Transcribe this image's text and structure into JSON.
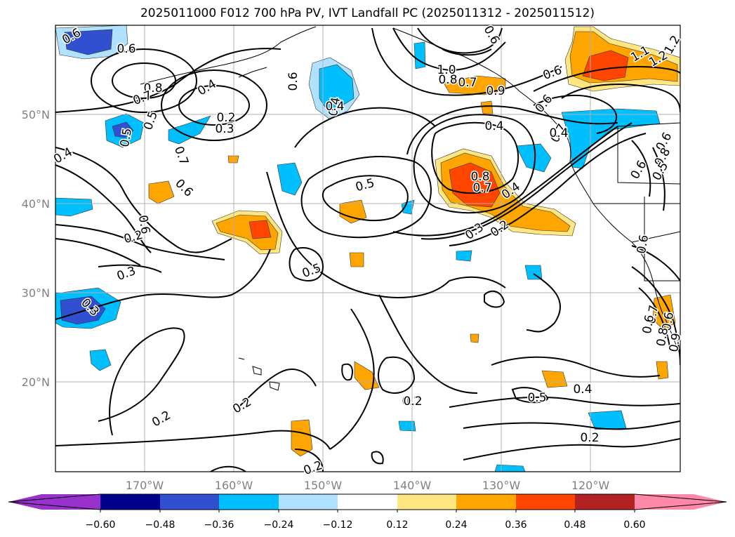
{
  "title": "2025011000 F012 700 hPa PV, IVT Landfall PC (2025011312 - 2025011512)",
  "map": {
    "region": "North Pacific",
    "grid": true,
    "lon_ticks": [
      "170°W",
      "160°W",
      "150°W",
      "140°W",
      "130°W",
      "120°W"
    ],
    "lat_ticks": [
      "50°N",
      "40°N",
      "30°N",
      "20°N"
    ],
    "contour_labels": [
      "0.6",
      "0.6",
      "0.8",
      "0.7",
      "0.5",
      "0.4",
      "0.2",
      "0.3",
      "0.5",
      "0.4",
      "0.6",
      "0.6",
      "0.4",
      "0.7",
      "0.6",
      "0.2",
      "0.3",
      "0.5",
      "0.5",
      "0.3",
      "0.2",
      "0.2",
      "0.2",
      "0.2",
      "1.0",
      "0.8",
      "0.7",
      "0.9",
      "0.6",
      "0.6",
      "0.4",
      "0.4",
      "0.8",
      "0.7",
      "0.4",
      "0.3",
      "0.2",
      "0.6",
      "0.7",
      "0.4",
      "1.1",
      "1.2",
      "1.2",
      "0.6",
      "0.6",
      "0.8",
      "0.5",
      "0.6",
      "0.7",
      "0.6",
      "0.6",
      "0.8",
      "0.9",
      "0.5",
      "0.4",
      "0.2",
      "0.2"
    ]
  },
  "colorbar": {
    "ticks": [
      "−0.60",
      "−0.48",
      "−0.36",
      "−0.24",
      "−0.12",
      "0.12",
      "0.24",
      "0.36",
      "0.48",
      "0.60"
    ],
    "colors": [
      "#9932cc",
      "#00008b",
      "#3050d0",
      "#00bfff",
      "#b0e2ff",
      "#ffffff",
      "#ffe680",
      "#ffa500",
      "#ff4500",
      "#b22222",
      "#ff88aa"
    ]
  }
}
